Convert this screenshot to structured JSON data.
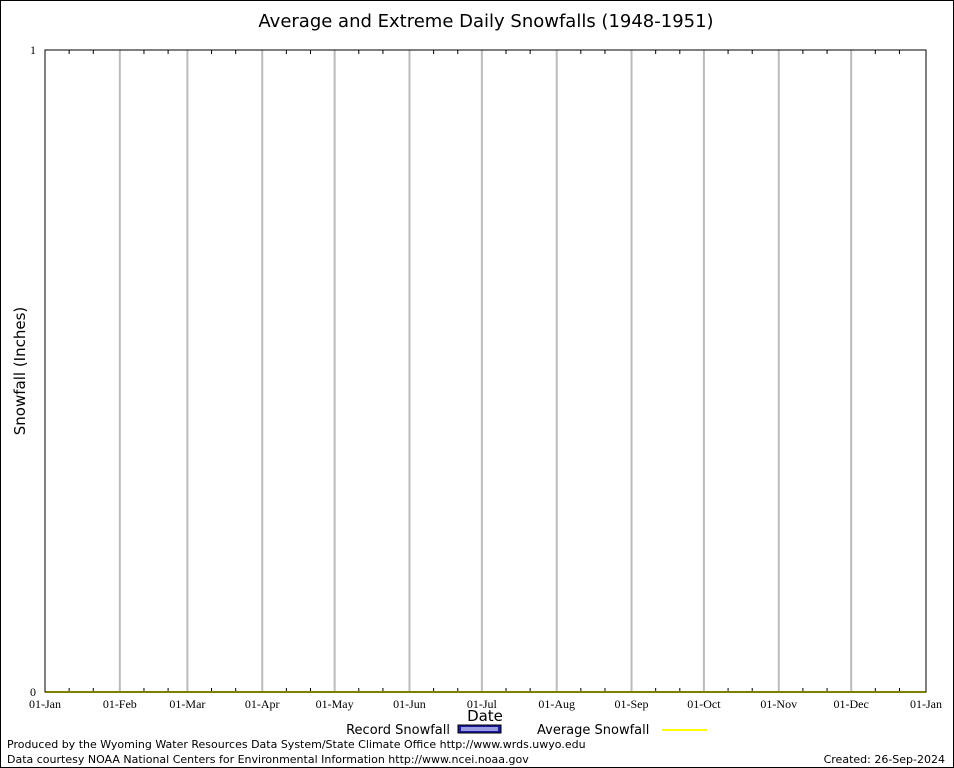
{
  "chart_data": {
    "type": "line",
    "title": "Average and Extreme Daily Snowfalls (1948-1951)",
    "xlabel": "Date",
    "ylabel": "Snowfall (Inches)",
    "ylim": [
      0,
      1
    ],
    "y_ticks": [
      "0",
      "1"
    ],
    "x_ticks": [
      "01-Jan",
      "01-Feb",
      "01-Mar",
      "01-Apr",
      "01-May",
      "01-Jun",
      "01-Jul",
      "01-Aug",
      "01-Sep",
      "01-Oct",
      "01-Nov",
      "01-Dec",
      "01-Jan"
    ],
    "x_tick_days": [
      0,
      31,
      59,
      90,
      120,
      151,
      181,
      212,
      243,
      273,
      304,
      334,
      365
    ],
    "grid": "vertical",
    "legend": "bottom-center",
    "series": [
      {
        "name": "Record Snowfall",
        "color": "#1a1aa0",
        "type": "bar",
        "values": []
      },
      {
        "name": "Average Snowfall",
        "color": "#ffff00",
        "type": "line",
        "values": "all 0"
      }
    ]
  },
  "footer": {
    "produced_by": "Produced by the Wyoming Water Resources Data System/State Climate Office http://www.wrds.uwyo.edu",
    "courtesy": "Data courtesy NOAA National Centers for Environmental Information http://www.ncei.noaa.gov",
    "created": "Created: 26-Sep-2024"
  }
}
